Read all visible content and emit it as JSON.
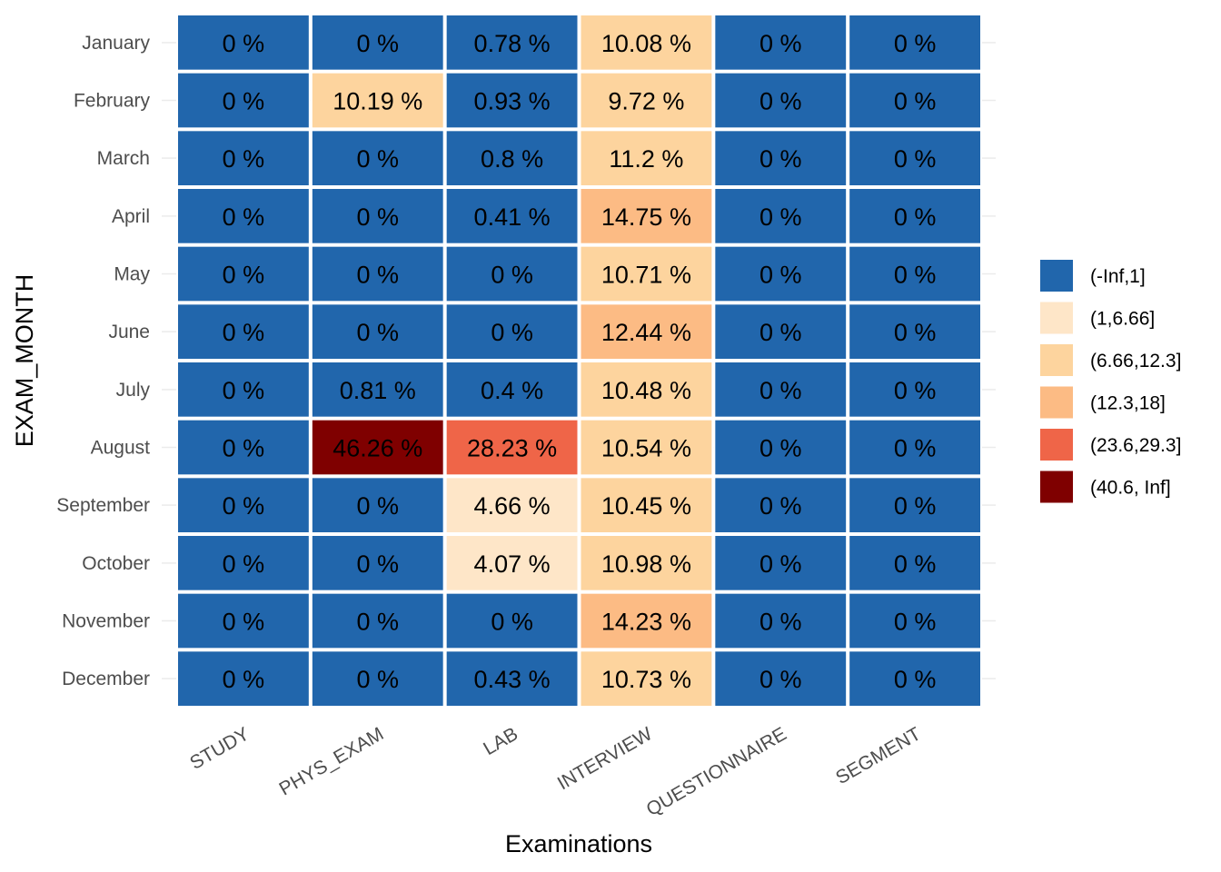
{
  "chart_data": {
    "type": "heatmap",
    "title": "",
    "xlabel": "Examinations",
    "ylabel": "EXAM_MONTH",
    "grid": true,
    "legend_position": "right",
    "categories_x": [
      "STUDY",
      "PHYS_EXAM",
      "LAB",
      "INTERVIEW",
      "QUESTIONNAIRE",
      "SEGMENT"
    ],
    "categories_y": [
      "January",
      "February",
      "March",
      "April",
      "May",
      "June",
      "July",
      "August",
      "September",
      "October",
      "November",
      "December"
    ],
    "values": [
      [
        0,
        0,
        0.78,
        10.08,
        0,
        0
      ],
      [
        0,
        10.19,
        0.93,
        9.72,
        0,
        0
      ],
      [
        0,
        0,
        0.8,
        11.2,
        0,
        0
      ],
      [
        0,
        0,
        0.41,
        14.75,
        0,
        0
      ],
      [
        0,
        0,
        0,
        10.71,
        0,
        0
      ],
      [
        0,
        0,
        0,
        12.44,
        0,
        0
      ],
      [
        0,
        0.81,
        0.4,
        10.48,
        0,
        0
      ],
      [
        0,
        46.26,
        28.23,
        10.54,
        0,
        0
      ],
      [
        0,
        0,
        4.66,
        10.45,
        0,
        0
      ],
      [
        0,
        0,
        4.07,
        10.98,
        0,
        0
      ],
      [
        0,
        0,
        0,
        14.23,
        0,
        0
      ],
      [
        0,
        0,
        0.43,
        10.73,
        0,
        0
      ]
    ],
    "value_suffix": " %",
    "legend": {
      "entries": [
        {
          "label": "(-Inf,1]",
          "color": "#2166ac",
          "min": null,
          "max": 1
        },
        {
          "label": "(1,6.66]",
          "color": "#fee6c8",
          "min": 1,
          "max": 6.66
        },
        {
          "label": "(6.66,12.3]",
          "color": "#fdd49e",
          "min": 6.66,
          "max": 12.3
        },
        {
          "label": "(12.3,18]",
          "color": "#fcbb84",
          "min": 12.3,
          "max": 18
        },
        {
          "label": "(23.6,29.3]",
          "color": "#ef6548",
          "min": 23.6,
          "max": 29.3
        },
        {
          "label": "(40.6, Inf]",
          "color": "#7f0000",
          "min": 40.6,
          "max": null
        }
      ]
    }
  }
}
